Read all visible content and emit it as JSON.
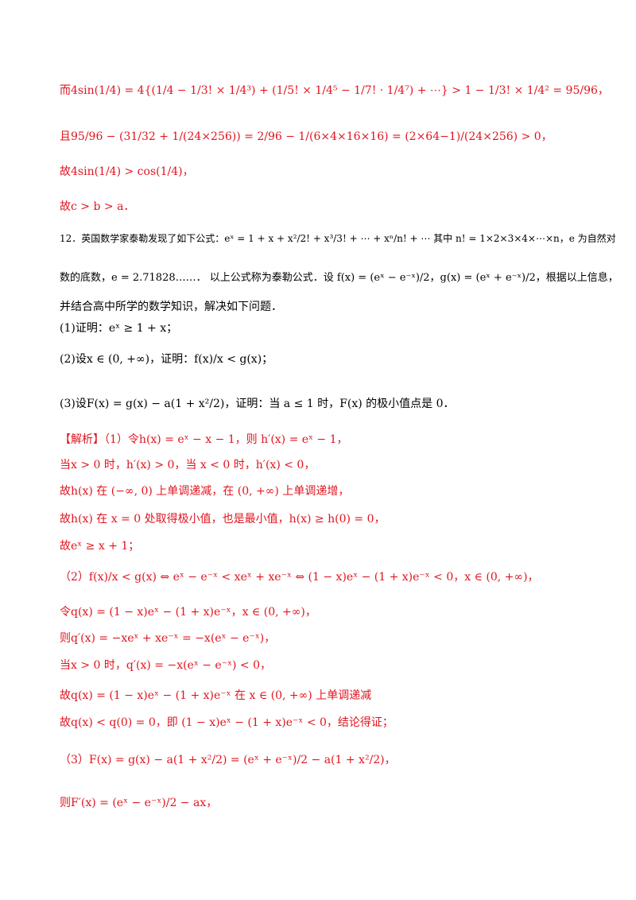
{
  "colors": {
    "answer": "#e0141e",
    "text": "#000000"
  },
  "lines": [
    {
      "id": "l1",
      "lead": "而",
      "math": "4sin(1/4) = 4{(1/4 − 1/3! × 1/4³) + (1/5! × 1/4⁵ − 1/7! · 1/4⁷) + ⋯} > 1 − 1/3! × 1/4² = 95/96，",
      "red": true
    },
    {
      "id": "l2",
      "lead": "且",
      "math": "95/96 − (31/32 + 1/(24×256)) = 2/96 − 1/(6×4×16×16) = (2×64−1)/(24×256) > 0，",
      "red": true
    },
    {
      "id": "l3",
      "lead": "故",
      "math": "4sin(1/4) > cos(1/4)，",
      "red": true
    },
    {
      "id": "l4",
      "lead": "故",
      "math": "c > b > a．",
      "red": true
    },
    {
      "id": "l5",
      "lead": "12．英国数学家泰勒发现了如下公式：",
      "math": "eˣ = 1 + x + x²/2! + x³/3! + ⋯ + xⁿ/n! + ⋯ 其中 n! = 1×2×3×4×⋯×n，e 为自然对",
      "red": false
    },
    {
      "id": "l6",
      "lead": "数的底数，",
      "math": "e = 2.71828……． 以上公式称为泰勒公式．设 f(x) = (eˣ − e⁻ˣ)/2，g(x) = (eˣ + e⁻ˣ)/2，根据以上信息，",
      "red": false
    },
    {
      "id": "l7",
      "lead": "并结合高中所学的数学知识，解决如下问题．",
      "math": "",
      "red": false
    },
    {
      "id": "l8",
      "lead": "(1)证明：",
      "math": "eˣ ≥ 1 + x；",
      "red": false
    },
    {
      "id": "l9",
      "lead": "(2)设",
      "math": "x ∈ (0, +∞)，证明：f(x)/x < g(x)；",
      "red": false
    },
    {
      "id": "l10",
      "lead": "(3)设",
      "math": "F(x) = g(x) − a(1 + x²/2)，证明：当 a ≤ 1 时，F(x) 的极小值点是 0．",
      "red": false
    },
    {
      "id": "l11",
      "lead": "【解析】（1）令",
      "math": "h(x) = eˣ − x − 1，则 h′(x) = eˣ − 1，",
      "red": true
    },
    {
      "id": "l12",
      "lead": "当",
      "math": "x > 0 时，h′(x) > 0，当 x < 0 时，h′(x) < 0，",
      "red": true
    },
    {
      "id": "l13",
      "lead": "故",
      "math": "h(x) 在 (−∞, 0) 上单调递减，在 (0, +∞) 上单调递增，",
      "red": true
    },
    {
      "id": "l14",
      "lead": "故",
      "math": "h(x) 在 x = 0 处取得极小值，也是最小值，h(x) ≥ h(0) = 0，",
      "red": true
    },
    {
      "id": "l15",
      "lead": "故",
      "math": "eˣ ≥ x + 1；",
      "red": true
    },
    {
      "id": "l16",
      "lead": "（2）",
      "math": "f(x)/x < g(x) ⇔ eˣ − e⁻ˣ < xeˣ + xe⁻ˣ ⇔ (1 − x)eˣ − (1 + x)e⁻ˣ < 0，x ∈ (0, +∞)，",
      "red": true
    },
    {
      "id": "l17",
      "lead": "令",
      "math": "q(x) = (1 − x)eˣ − (1 + x)e⁻ˣ，x ∈ (0, +∞)，",
      "red": true
    },
    {
      "id": "l18",
      "lead": "则",
      "math": "q′(x) = −xeˣ + xe⁻ˣ = −x(eˣ − e⁻ˣ)，",
      "red": true
    },
    {
      "id": "l19",
      "lead": "当",
      "math": "x > 0 时，q′(x) = −x(eˣ − e⁻ˣ) < 0，",
      "red": true
    },
    {
      "id": "l20",
      "lead": "故",
      "math": "q(x) = (1 − x)eˣ − (1 + x)e⁻ˣ 在 x ∈ (0, +∞) 上单调递减",
      "red": true
    },
    {
      "id": "l21",
      "lead": "故",
      "math": "q(x) < q(0) = 0，即 (1 − x)eˣ − (1 + x)e⁻ˣ < 0，结论得证；",
      "red": true
    },
    {
      "id": "l22",
      "lead": "（3）",
      "math": "F(x) = g(x) − a(1 + x²/2) = (eˣ + e⁻ˣ)/2 − a(1 + x²/2)，",
      "red": true
    },
    {
      "id": "l23",
      "lead": "则",
      "math": "F′(x) = (eˣ − e⁻ˣ)/2 − ax，",
      "red": true
    }
  ]
}
